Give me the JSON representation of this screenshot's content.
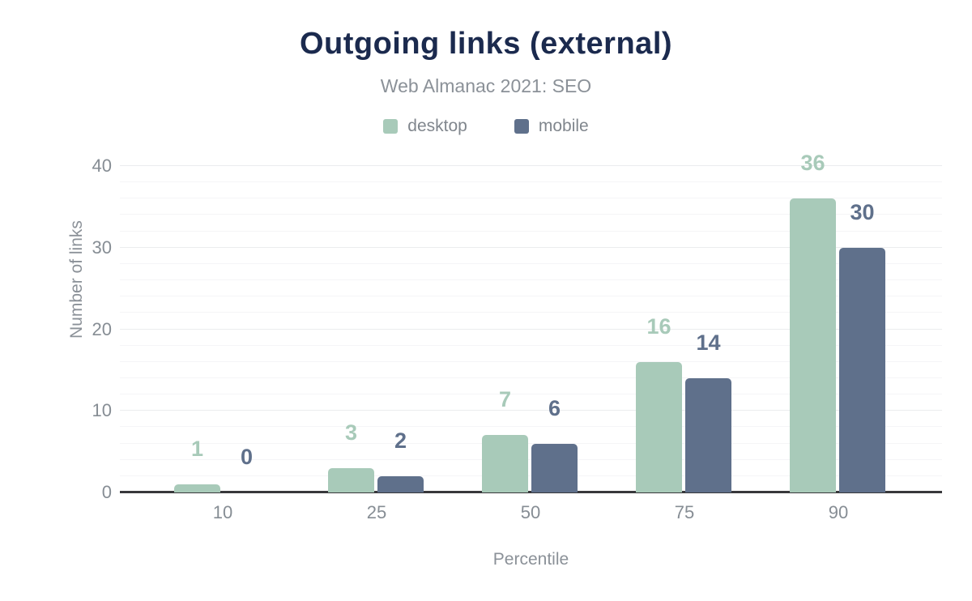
{
  "chart_data": {
    "type": "bar",
    "title": "Outgoing links (external)",
    "subtitle": "Web Almanac 2021: SEO",
    "xlabel": "Percentile",
    "ylabel": "Number of links",
    "categories": [
      "10",
      "25",
      "50",
      "75",
      "90"
    ],
    "series": [
      {
        "name": "desktop",
        "color": "#a8cab9",
        "values": [
          1,
          3,
          7,
          16,
          36
        ]
      },
      {
        "name": "mobile",
        "color": "#5f708b",
        "values": [
          0,
          2,
          6,
          14,
          30
        ]
      }
    ],
    "ylim": [
      0,
      40
    ],
    "yticks": [
      0,
      10,
      20,
      30,
      40
    ],
    "minor_grid_step": 2,
    "grid": "on",
    "legend_position": "top",
    "value_labels": "on",
    "colors": {
      "title": "#1b2a4e",
      "subtitle_text": "#8b9198",
      "tick_text": "#868d94",
      "axis_line": "#38383b",
      "major_gridline": "#ebecee",
      "minor_gridline": "#f5f5f7",
      "background": "#ffffff"
    }
  }
}
